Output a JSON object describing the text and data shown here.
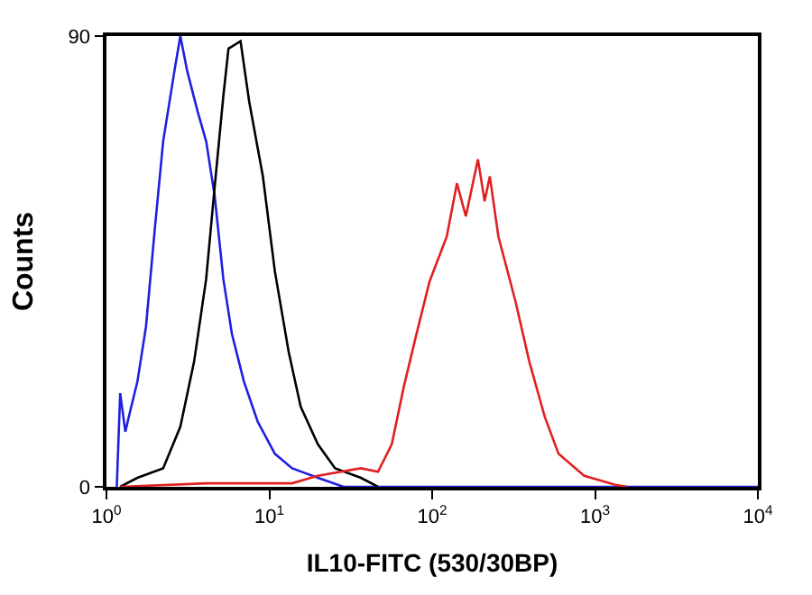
{
  "chart_data": {
    "type": "line",
    "xlabel": "IL10-FITC (530/30BP)",
    "ylabel": "Counts",
    "log": "x",
    "xlim": [
      1,
      10000
    ],
    "ylim": [
      0,
      90
    ],
    "xticks": [
      {
        "value": 1,
        "label": "10$^{0}$"
      },
      {
        "value": 10,
        "label": "10$^{1}$"
      },
      {
        "value": 100,
        "label": "10$^{2}$"
      },
      {
        "value": 1000,
        "label": "10$^{3}$"
      },
      {
        "value": 10000,
        "label": "10$^{4}$"
      }
    ],
    "yticks": [
      0,
      90
    ],
    "series": [
      {
        "color": "#1f1fe0",
        "x": [
          1.157,
          1.214,
          1.306,
          1.405,
          1.549,
          1.749,
          1.975,
          2.23,
          2.644,
          2.843,
          3.133,
          3.626,
          4.094,
          4.622,
          5.22,
          5.894,
          6.988,
          8.487,
          10.82,
          13.8,
          19.87,
          28.6,
          10000
        ],
        "values": [
          0,
          18.7,
          11,
          15.4,
          21,
          32,
          51,
          69,
          84,
          90,
          83,
          75,
          69,
          58,
          41.5,
          30.5,
          21,
          13,
          6.6,
          3.7,
          1.8,
          0,
          0
        ]
      },
      {
        "color": "#000000",
        "x": [
          1.214,
          1.549,
          2.23,
          2.843,
          3.453,
          4.094,
          4.622,
          5.22,
          5.615,
          6.656,
          7.516,
          9.13,
          10.82,
          13.14,
          15.58,
          19.87,
          25.33,
          36.5,
          46.5
        ],
        "values": [
          0,
          1.8,
          3.7,
          12,
          25,
          41.5,
          60,
          78,
          87.5,
          89,
          77,
          62,
          43,
          27,
          16,
          8.5,
          3.7,
          1.8,
          0
        ]
      },
      {
        "color": "#e02020",
        "x": [
          1.214,
          4.094,
          13.8,
          19.87,
          36.5,
          46.5,
          56.5,
          67,
          79.4,
          96.4,
          123,
          142,
          161,
          191,
          210,
          226,
          255,
          325,
          395,
          491,
          597,
          859,
          1330,
          1578
        ],
        "values": [
          0,
          0.7,
          0.7,
          2.2,
          3.7,
          3,
          8.5,
          20,
          30,
          41,
          50,
          60.6,
          54,
          65.4,
          57,
          62,
          50,
          37,
          25,
          14,
          6.6,
          2.2,
          0.4,
          0
        ]
      }
    ]
  }
}
